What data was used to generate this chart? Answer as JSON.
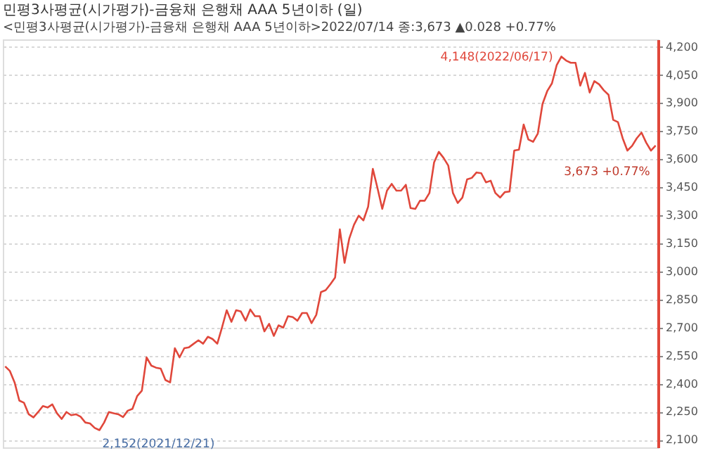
{
  "chart_data": {
    "type": "line",
    "title": "민평3사평균(시가평가)-금융채 은행채 AAA 5년이하 (일)",
    "subtitle": "<민평3사평균(시가평가)-금융채 은행채 AAA 5년이하>2022/07/14 종:3,673 ▲0.028 +0.77%",
    "categories": [
      null,
      null,
      null,
      null,
      null,
      null,
      null,
      null,
      null,
      null,
      null,
      null,
      null,
      null,
      null,
      null,
      null,
      null,
      null,
      null,
      null,
      null,
      null,
      null,
      null,
      null,
      null,
      null,
      null,
      null,
      null,
      null,
      null,
      null,
      null,
      null,
      null,
      null,
      null,
      null,
      null,
      null,
      null,
      null,
      null,
      null,
      null,
      null,
      null,
      null,
      null,
      null,
      null,
      null,
      null,
      null,
      null,
      null,
      null,
      null,
      null,
      null,
      null,
      null,
      null,
      null,
      null,
      null,
      null,
      null,
      null,
      null,
      null,
      null,
      null,
      null,
      null,
      null,
      null,
      null,
      null,
      null,
      null,
      null,
      null,
      null,
      null,
      null,
      null,
      null,
      null,
      null,
      null,
      null,
      null,
      null,
      null,
      null,
      null,
      null,
      null,
      null,
      null,
      null,
      null,
      null,
      null,
      null,
      null,
      null,
      null,
      null,
      null,
      null,
      null,
      null,
      null,
      null,
      null,
      null,
      null,
      null,
      null,
      null,
      null,
      null,
      null,
      null,
      null,
      null,
      null,
      null,
      null,
      null,
      null,
      null,
      null,
      null,
      null
    ],
    "series": [
      {
        "color": "#e0473b",
        "values": [
          2493,
          2468,
          2407,
          2310,
          2298,
          2237,
          2220,
          2249,
          2281,
          2273,
          2290,
          2242,
          2212,
          2249,
          2232,
          2237,
          2224,
          2193,
          2188,
          2164,
          2152,
          2193,
          2249,
          2242,
          2237,
          2222,
          2256,
          2266,
          2334,
          2363,
          2541,
          2497,
          2486,
          2481,
          2420,
          2407,
          2590,
          2541,
          2590,
          2595,
          2614,
          2632,
          2614,
          2651,
          2639,
          2614,
          2700,
          2793,
          2731,
          2793,
          2786,
          2737,
          2797,
          2761,
          2761,
          2680,
          2720,
          2656,
          2712,
          2700,
          2761,
          2756,
          2737,
          2778,
          2778,
          2724,
          2768,
          2890,
          2900,
          2932,
          2968,
          3225,
          3046,
          3176,
          3249,
          3298,
          3273,
          3346,
          3548,
          3444,
          3334,
          3432,
          3468,
          3432,
          3432,
          3463,
          3339,
          3334,
          3378,
          3378,
          3419,
          3583,
          3639,
          3607,
          3566,
          3419,
          3366,
          3395,
          3492,
          3500,
          3529,
          3525,
          3476,
          3485,
          3419,
          3395,
          3424,
          3427,
          3646,
          3651,
          3785,
          3705,
          3693,
          3737,
          3895,
          3964,
          4005,
          4102,
          4148,
          4127,
          4115,
          4115,
          3993,
          4061,
          3956,
          4017,
          4000,
          3968,
          3944,
          3810,
          3798,
          3712,
          3646,
          3671,
          3712,
          3742,
          3688,
          3646,
          3673
        ]
      }
    ],
    "ylim": [
      2060,
      4240
    ],
    "yticks": [
      {
        "value": 2100,
        "label": "2,100"
      },
      {
        "value": 2250,
        "label": "2,250"
      },
      {
        "value": 2400,
        "label": "2,400"
      },
      {
        "value": 2550,
        "label": "2,550"
      },
      {
        "value": 2700,
        "label": "2,700"
      },
      {
        "value": 2850,
        "label": "2,850"
      },
      {
        "value": 3000,
        "label": "3,000"
      },
      {
        "value": 3150,
        "label": "3,150"
      },
      {
        "value": 3300,
        "label": "3,300"
      },
      {
        "value": 3450,
        "label": "3,450"
      },
      {
        "value": 3600,
        "label": "3,600"
      },
      {
        "value": 3750,
        "label": "3,750"
      },
      {
        "value": 3900,
        "label": "3,900"
      },
      {
        "value": 4050,
        "label": "4,050"
      },
      {
        "value": 4200,
        "label": "4,200"
      }
    ],
    "annotations": [
      "4,148(2022/06/17)",
      "2,152(2021/12/21)",
      "3,673 +0.77%"
    ],
    "grid": "y",
    "tick_labels": "y",
    "marker": "none",
    "line_style": "solid"
  }
}
